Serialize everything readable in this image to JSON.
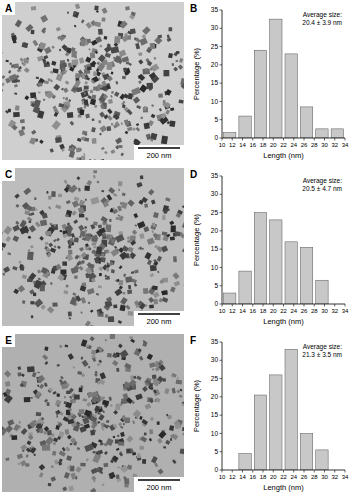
{
  "chart_data": [
    {
      "type": "histogram",
      "title": "B",
      "annotations": [
        "Average size:",
        "20.4 ± 3.9 nm"
      ],
      "x_label": "Length (nm)",
      "y_label": "Percentage (%)",
      "bins": [
        10,
        13,
        16,
        19,
        22,
        25,
        28,
        31,
        34
      ],
      "values": [
        1.5,
        6,
        24,
        32.5,
        23,
        8.5,
        2.5,
        2.5
      ],
      "color": "#c8c8c8",
      "xlim": [
        10,
        34
      ],
      "xticks": [
        10,
        12,
        14,
        16,
        18,
        20,
        22,
        24,
        26,
        28,
        30,
        32,
        34
      ],
      "ylim": [
        0,
        35
      ],
      "yticks": [
        0,
        5,
        10,
        15,
        20,
        25,
        30,
        35
      ],
      "grid": false
    },
    {
      "type": "histogram",
      "title": "D",
      "annotations": [
        "Average size:",
        "20.5 ± 4.7 nm"
      ],
      "x_label": "Length (nm)",
      "y_label": "Percentage (%)",
      "bins": [
        10,
        13,
        16,
        19,
        22,
        25,
        28,
        31
      ],
      "values": [
        3,
        9,
        25,
        23,
        17,
        15.5,
        6.5
      ],
      "color": "#c8c8c8",
      "xlim": [
        10,
        34
      ],
      "xticks": [
        10,
        12,
        14,
        16,
        18,
        20,
        22,
        24,
        26,
        28,
        30,
        32,
        34
      ],
      "ylim": [
        0,
        35
      ],
      "yticks": [
        0,
        5,
        10,
        15,
        20,
        25,
        30,
        35
      ],
      "grid": false
    },
    {
      "type": "histogram",
      "title": "F",
      "annotations": [
        "Average size:",
        "21.3 ± 3.5 nm"
      ],
      "x_label": "Length (nm)",
      "y_label": "Percentage (%)",
      "bins": [
        10,
        13,
        16,
        19,
        22,
        25,
        28,
        31
      ],
      "values": [
        0,
        4.5,
        20.5,
        26,
        33,
        10,
        5.5
      ],
      "color": "#c8c8c8",
      "xlim": [
        10,
        34
      ],
      "xticks": [
        10,
        12,
        14,
        16,
        18,
        20,
        22,
        24,
        26,
        28,
        30,
        32,
        34
      ],
      "ylim": [
        0,
        35
      ],
      "yticks": [
        0,
        5,
        10,
        15,
        20,
        25,
        30,
        35
      ],
      "grid": false
    }
  ],
  "images": [
    {
      "label": "A",
      "scale_bar": "200 nm"
    },
    {
      "label": "C",
      "scale_bar": "200 nm"
    },
    {
      "label": "E",
      "scale_bar": "200 nm"
    }
  ]
}
